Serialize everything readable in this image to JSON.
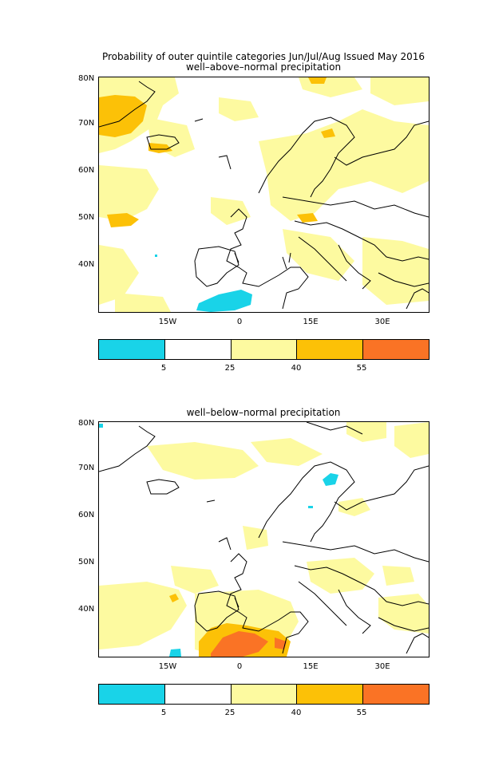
{
  "title_line1": "Probability of outer quintile categories Jun/Jul/Aug Issued May 2016",
  "panels": [
    {
      "subtitle": "well–above–normal precipitation"
    },
    {
      "subtitle": "well–below–normal precipitation"
    }
  ],
  "axes": {
    "lat_labels": [
      "80N",
      "70N",
      "60N",
      "50N",
      "40N"
    ],
    "lon_labels": [
      "15W",
      "0",
      "15E",
      "30E"
    ]
  },
  "colorbar": {
    "ticks": [
      "5",
      "25",
      "40",
      "55"
    ],
    "colors": [
      "#19d3e8",
      "#ffffff",
      "#fdfaa0",
      "#fcc107",
      "#fa7325"
    ]
  },
  "legend_colors": {
    "below_5": "#19d3e8",
    "5_25": "#ffffff",
    "25_40": "#fdfaa0",
    "40_55": "#fcc107",
    "above_55": "#fa7325"
  }
}
